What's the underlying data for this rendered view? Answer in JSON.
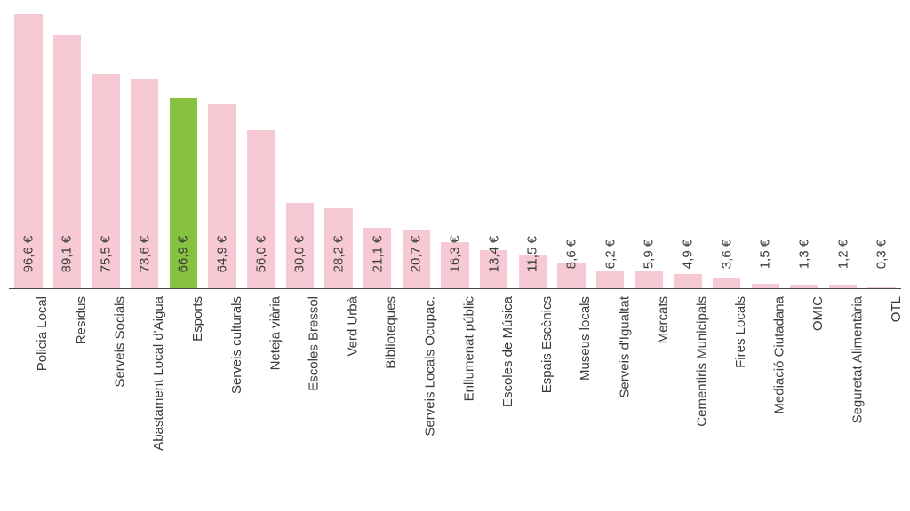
{
  "chart": {
    "type": "bar",
    "background_color": "#ffffff",
    "axis_line_color": "#444444",
    "bar_fill_default": "#f6c9d5",
    "bar_fill_highlight": "#86c13f",
    "text_color": "#3a3a3a",
    "value_fontsize": 15,
    "label_fontsize": 15,
    "value_suffix": " €",
    "y_max": 100,
    "bar_width_ratio": 0.72,
    "categories": [
      {
        "label": "Policia Local",
        "value": 96.6,
        "display": "96,6 €",
        "highlight": false
      },
      {
        "label": "Residus",
        "value": 89.1,
        "display": "89,1 €",
        "highlight": false
      },
      {
        "label": "Serveis Socials",
        "value": 75.5,
        "display": "75,5 €",
        "highlight": false
      },
      {
        "label": "Abastament Local d'Aigua",
        "value": 73.6,
        "display": "73,6 €",
        "highlight": false
      },
      {
        "label": "Esports",
        "value": 66.9,
        "display": "66,9 €",
        "highlight": true
      },
      {
        "label": "Serveis culturals",
        "value": 64.9,
        "display": "64,9 €",
        "highlight": false
      },
      {
        "label": "Neteja viària",
        "value": 56.0,
        "display": "56,0 €",
        "highlight": false
      },
      {
        "label": "Escoles Bressol",
        "value": 30.0,
        "display": "30,0 €",
        "highlight": false
      },
      {
        "label": "Verd Urbà",
        "value": 28.2,
        "display": "28,2 €",
        "highlight": false
      },
      {
        "label": "Biblioteques",
        "value": 21.1,
        "display": "21,1 €",
        "highlight": false
      },
      {
        "label": "Serveis Locals Ocupac.",
        "value": 20.7,
        "display": "20,7 €",
        "highlight": false
      },
      {
        "label": "Enllumenat públic",
        "value": 16.3,
        "display": "16,3 €",
        "highlight": false
      },
      {
        "label": "Escoles de Música",
        "value": 13.4,
        "display": "13,4 €",
        "highlight": false
      },
      {
        "label": "Espais Escènics",
        "value": 11.5,
        "display": "11,5 €",
        "highlight": false
      },
      {
        "label": "Museus locals",
        "value": 8.6,
        "display": "8,6 €",
        "highlight": false
      },
      {
        "label": "Serveis d'Igualtat",
        "value": 6.2,
        "display": "6,2 €",
        "highlight": false
      },
      {
        "label": "Mercats",
        "value": 5.9,
        "display": "5,9 €",
        "highlight": false
      },
      {
        "label": "Cementiris Municipals",
        "value": 4.9,
        "display": "4,9 €",
        "highlight": false
      },
      {
        "label": "Fires Locals",
        "value": 3.6,
        "display": "3,6 €",
        "highlight": false
      },
      {
        "label": "Mediació Ciutadana",
        "value": 1.5,
        "display": "1,5 €",
        "highlight": false
      },
      {
        "label": "OMIC",
        "value": 1.3,
        "display": "1,3 €",
        "highlight": false
      },
      {
        "label": "Seguretat Alimentària",
        "value": 1.2,
        "display": "1,2 €",
        "highlight": false
      },
      {
        "label": "OTL",
        "value": 0.3,
        "display": "0,3 €",
        "highlight": false
      }
    ]
  }
}
